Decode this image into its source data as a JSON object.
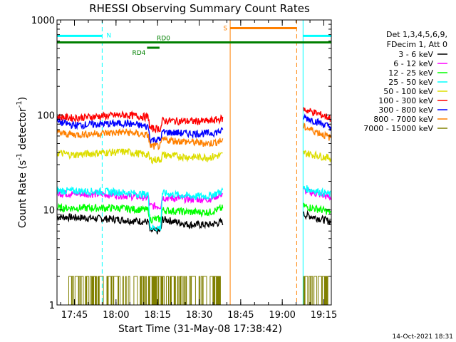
{
  "chart_data": {
    "type": "line",
    "title": "RHESSI Observing Summary Count Rates",
    "xlabel": "Start Time (31-May-08 17:38:42)",
    "ylabel_main": "Count Rate (s",
    "ylabel_sup1": "-1",
    "ylabel_mid": " detector",
    "ylabel_sup2": "-1",
    "ylabel_end": ")",
    "yscale": "log",
    "ylim": [
      1,
      1000
    ],
    "xlim_minutes": [
      0,
      99
    ],
    "x_ticks": [
      {
        "label": "17:45",
        "min": 6.3
      },
      {
        "label": "18:00",
        "min": 21.3
      },
      {
        "label": "18:15",
        "min": 36.3
      },
      {
        "label": "18:30",
        "min": 51.3
      },
      {
        "label": "18:45",
        "min": 66.3
      },
      {
        "label": "19:00",
        "min": 81.3
      },
      {
        "label": "19:15",
        "min": 96.3
      }
    ],
    "y_ticks": [
      {
        "label": "1",
        "value": 1
      },
      {
        "label": "10",
        "value": 10
      },
      {
        "label": "100",
        "value": 100
      },
      {
        "label": "1000",
        "value": 1000
      }
    ],
    "legend_header": [
      "Det 1,3,4,5,6,9,",
      "FDecim 1, Att 0"
    ],
    "data_gaps_minutes": [
      [
        60.5,
        88.5
      ]
    ],
    "series": [
      {
        "name": "3 - 6 keV",
        "color": "#000000",
        "segments": [
          {
            "x": [
              0,
              21,
              33,
              33.5,
              37.5,
              38,
              48,
              55,
              60
            ],
            "y": [
              8.5,
              8,
              7.5,
              6,
              6,
              8,
              7,
              7,
              7.5
            ]
          },
          {
            "x": [
              89,
              99
            ],
            "y": [
              9,
              7.5
            ]
          }
        ]
      },
      {
        "name": "6 - 12 keV",
        "color": "#ff00ff",
        "segments": [
          {
            "x": [
              0,
              21,
              33,
              33.5,
              37.5,
              38,
              48,
              55,
              60
            ],
            "y": [
              15,
              14.5,
              13.5,
              11,
              11,
              13.5,
              13,
              13,
              15
            ]
          },
          {
            "x": [
              89,
              99
            ],
            "y": [
              16,
              13.5
            ]
          }
        ]
      },
      {
        "name": "12 - 25 keV",
        "color": "#00ff00",
        "segments": [
          {
            "x": [
              0,
              21,
              33,
              33.5,
              37.5,
              38,
              48,
              55,
              60
            ],
            "y": [
              10.5,
              10.5,
              10,
              8,
              8,
              10,
              9.5,
              9.5,
              10.5
            ]
          },
          {
            "x": [
              89,
              99
            ],
            "y": [
              11,
              9.5
            ]
          }
        ]
      },
      {
        "name": "25 - 50 keV",
        "color": "#00ffff",
        "segments": [
          {
            "x": [
              0,
              21,
              33,
              33.5,
              37.5,
              38,
              48,
              55,
              60
            ],
            "y": [
              16,
              15.5,
              14.5,
              6.5,
              6.5,
              15,
              14,
              14,
              16
            ]
          },
          {
            "x": [
              89,
              99
            ],
            "y": [
              17,
              14.5
            ]
          }
        ]
      },
      {
        "name": "50 - 100 keV",
        "color": "#dddd00",
        "segments": [
          {
            "x": [
              0,
              6,
              15,
              25,
              33,
              33.5,
              37.5,
              38,
              48,
              55,
              60
            ],
            "y": [
              40,
              38,
              40,
              41,
              38,
              34,
              34,
              38,
              36,
              36,
              38
            ]
          },
          {
            "x": [
              89,
              99
            ],
            "y": [
              40,
              35
            ]
          }
        ]
      },
      {
        "name": "100 - 300 keV",
        "color": "#ff0000",
        "segments": [
          {
            "x": [
              0,
              6,
              15,
              25,
              33,
              33.5,
              37.5,
              38,
              48,
              55,
              60
            ],
            "y": [
              96,
              93,
              97,
              100,
              95,
              72,
              72,
              87,
              86,
              86,
              92
            ]
          },
          {
            "x": [
              89,
              99
            ],
            "y": [
              115,
              92
            ]
          }
        ]
      },
      {
        "name": "300 - 800 keV",
        "color": "#0000ff",
        "segments": [
          {
            "x": [
              0,
              6,
              15,
              25,
              33,
              33.5,
              37.5,
              38,
              48,
              55,
              60
            ],
            "y": [
              85,
              78,
              80,
              82,
              75,
              55,
              55,
              66,
              64,
              64,
              68
            ]
          },
          {
            "x": [
              89,
              99
            ],
            "y": [
              95,
              74
            ]
          }
        ]
      },
      {
        "name": "800 - 7000 keV",
        "color": "#ff8000",
        "segments": [
          {
            "x": [
              0,
              6,
              15,
              25,
              33,
              33.5,
              37.5,
              38,
              48,
              55,
              60
            ],
            "y": [
              65,
              62,
              64,
              66,
              61,
              47,
              47,
              55,
              52,
              50,
              54
            ]
          },
          {
            "x": [
              89,
              99
            ],
            "y": [
              75,
              57
            ]
          }
        ]
      },
      {
        "name": "7000 - 15000 keV",
        "color": "#808000",
        "segments": [
          {
            "x": [
              4,
              59
            ],
            "y": [
              1.6,
              1.6
            ]
          },
          {
            "x": [
              89,
              98
            ],
            "y": [
              1.6,
              1.6
            ]
          }
        ]
      }
    ],
    "flag_bars": [
      {
        "label": "N",
        "color": "#00ffff",
        "y": 680,
        "segments": [
          [
            0,
            16.3
          ],
          [
            88.8,
            99
          ]
        ],
        "markers": [
          {
            "min": 0,
            "style": "solid"
          },
          {
            "min": 16.3,
            "style": "dashed"
          },
          {
            "min": 88.8,
            "style": "solid"
          },
          {
            "min": 99,
            "style": "dashed"
          }
        ]
      },
      {
        "label": "S",
        "color": "#ff8000",
        "y": 820,
        "segments": [
          [
            62.5,
            86.5
          ]
        ],
        "markers": [
          {
            "min": 62.5,
            "style": "solid"
          },
          {
            "min": 86.5,
            "style": "dashed"
          }
        ]
      },
      {
        "label": "RD0",
        "color": "#008000",
        "y": 580,
        "segments": [
          [
            0,
            99
          ]
        ],
        "markers": []
      },
      {
        "label": "RD4",
        "color": "#008000",
        "y": 510,
        "segments": [
          [
            32.5,
            37
          ]
        ],
        "markers": []
      }
    ]
  },
  "footer_date": "14-Oct-2021 18:31"
}
